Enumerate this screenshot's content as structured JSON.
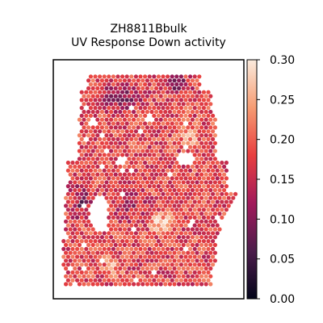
{
  "chart_data": {
    "type": "heatmap",
    "title_lines": [
      "ZH8811Bbulk",
      "UV Response Down activity"
    ],
    "xlabel": "",
    "ylabel": "",
    "grid": false,
    "colormap": "rocket",
    "colorbar": {
      "range": [
        0.0,
        0.3
      ],
      "tick_labels": [
        "0.00",
        "0.05",
        "0.10",
        "0.15",
        "0.20",
        "0.25",
        "0.30"
      ],
      "tick_values": [
        0.0,
        0.05,
        0.1,
        0.15,
        0.2,
        0.25,
        0.3
      ],
      "placement": "right"
    },
    "spatial_pattern": {
      "description_values": "dense field of hexagonal tissue spots colored by activity score",
      "typical_value": 0.18,
      "low_regions_value": 0.06,
      "high_regions_value": 0.27
    }
  },
  "colors": {
    "colormap_stops": [
      "#03051a",
      "#4c1d4b",
      "#a11a5b",
      "#e83f3f",
      "#f69c73",
      "#faebdd"
    ]
  }
}
